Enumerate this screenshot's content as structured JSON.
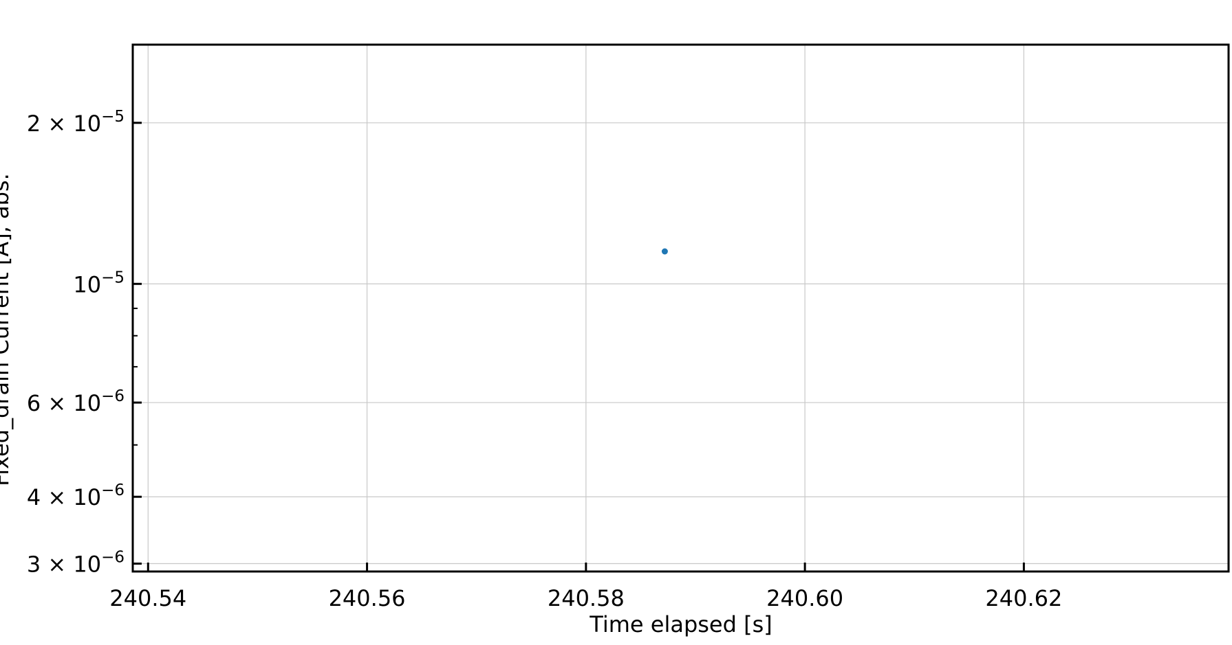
{
  "chart_data": {
    "type": "scatter",
    "xlabel": "Time elapsed [s]",
    "ylabel": "Fixed_drain Current [A], abs.",
    "x_scale": "linear",
    "y_scale": "log",
    "xlim": [
      240.5386,
      240.6387
    ],
    "ylim": [
      2.9e-06,
      2.8e-05
    ],
    "x_ticks": [
      {
        "value": 240.54,
        "label": "240.54"
      },
      {
        "value": 240.56,
        "label": "240.56"
      },
      {
        "value": 240.58,
        "label": "240.58"
      },
      {
        "value": 240.6,
        "label": "240.60"
      },
      {
        "value": 240.62,
        "label": "240.62"
      }
    ],
    "y_ticks_major": [
      {
        "value": 2e-05,
        "mantissa": "2",
        "exponent": "−5"
      },
      {
        "value": 1e-05,
        "mantissa": "",
        "exponent": "−5"
      },
      {
        "value": 6e-06,
        "mantissa": "6",
        "exponent": "−6"
      },
      {
        "value": 4e-06,
        "mantissa": "4",
        "exponent": "−6"
      },
      {
        "value": 3e-06,
        "mantissa": "3",
        "exponent": "−6"
      }
    ],
    "y_ticks_minor": [
      9e-06,
      8e-06,
      7e-06,
      5e-06
    ],
    "grid": true,
    "series": [
      {
        "color": "#1f77b4",
        "x": [
          240.5872
        ],
        "y": [
          1.15e-05
        ]
      }
    ]
  }
}
